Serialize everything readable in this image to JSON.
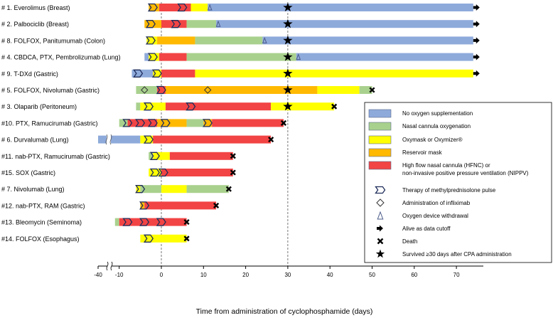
{
  "chart_data": {
    "type": "bar",
    "subtype": "swimmer",
    "title": "",
    "xlabel": "Time from administration of cyclophosphamide (days)",
    "ylabel": "",
    "xlim": [
      -40,
      75
    ],
    "axis_break": [
      -36,
      -12
    ],
    "xticks": [
      -40,
      -10,
      0,
      10,
      20,
      30,
      40,
      50,
      60,
      70
    ],
    "reference_lines": [
      0,
      30
    ],
    "legend_position": "right",
    "legend": [
      {
        "key": "none",
        "label": "No oxygen supplementation",
        "color": "#8eaadb"
      },
      {
        "key": "nasal",
        "label": "Nasal cannula oxygenation",
        "color": "#a9d18e"
      },
      {
        "key": "oxy",
        "label": "Oxymask or Oxymizer®",
        "color": "#ffff00"
      },
      {
        "key": "reservoir",
        "label": "Reservoir mask",
        "color": "#ffb900"
      },
      {
        "key": "hfnc",
        "label": "High flow nasal cannula (HFNC) or",
        "label2": "non-invasive positive pressure ventilation (NIPPV)",
        "color": "#f24444"
      },
      {
        "key": "pulse",
        "label": "Therapy of methylprednisolone pulse"
      },
      {
        "key": "inflix",
        "label": "Administration of infliximab"
      },
      {
        "key": "withdrawal",
        "label": "Oxygen device withdrawal"
      },
      {
        "key": "alive",
        "label": "Alive as data cutoff"
      },
      {
        "key": "death",
        "label": "Death"
      },
      {
        "key": "survived",
        "label": "Survived ≥30 days after CPA administration"
      }
    ],
    "patients": [
      {
        "id": "# 1.",
        "label": "Everolimus (Breast)",
        "segments": [
          {
            "s": -3,
            "e": -0.5,
            "t": "reservoir"
          },
          {
            "s": -0.5,
            "e": 7,
            "t": "hfnc"
          },
          {
            "s": 7,
            "e": 11,
            "t": "oxy"
          },
          {
            "s": 11,
            "e": 74,
            "t": "none"
          }
        ],
        "pulses": [
          -2,
          5
        ],
        "inflix": [],
        "withdrawal": [
          11.5
        ],
        "end": "alive",
        "survived": true
      },
      {
        "id": "# 2.",
        "label": "Palbociclib (Breast)",
        "segments": [
          {
            "s": -4,
            "e": 0,
            "t": "reservoir"
          },
          {
            "s": 0,
            "e": 6,
            "t": "hfnc"
          },
          {
            "s": 6,
            "e": 13,
            "t": "nasal"
          },
          {
            "s": 13,
            "e": 74,
            "t": "none"
          }
        ],
        "pulses": [
          -2.5,
          3.5
        ],
        "inflix": [],
        "withdrawal": [
          13.5
        ],
        "end": "alive",
        "survived": true
      },
      {
        "id": "# 8.",
        "label": "FOLFOX, Panitumumab (Colon)",
        "segments": [
          {
            "s": -3.5,
            "e": -1,
            "t": "oxy"
          },
          {
            "s": -1,
            "e": 8,
            "t": "reservoir"
          },
          {
            "s": 8,
            "e": 24,
            "t": "nasal"
          },
          {
            "s": 24,
            "e": 74,
            "t": "none"
          }
        ],
        "pulses": [
          -2.5
        ],
        "inflix": [],
        "withdrawal": [
          24.5
        ],
        "end": "alive",
        "survived": true
      },
      {
        "id": "# 4.",
        "label": "CBDCA, PTX, Pembrolizumab (Lung)",
        "segments": [
          {
            "s": -4,
            "e": -3,
            "t": "none"
          },
          {
            "s": -3,
            "e": -0.5,
            "t": "oxy"
          },
          {
            "s": -0.5,
            "e": 6,
            "t": "hfnc"
          },
          {
            "s": 6,
            "e": 32,
            "t": "nasal"
          },
          {
            "s": 32,
            "e": 74,
            "t": "none"
          }
        ],
        "pulses": [
          -2
        ],
        "inflix": [],
        "withdrawal": [
          32.5
        ],
        "end": "alive",
        "survived": true
      },
      {
        "id": "# 9.",
        "label": "T-DXd (Gastric)",
        "segments": [
          {
            "s": -7,
            "e": -2,
            "t": "none"
          },
          {
            "s": -2,
            "e": 0,
            "t": "oxy"
          },
          {
            "s": 0,
            "e": 8,
            "t": "hfnc"
          },
          {
            "s": 8,
            "e": 74,
            "t": "oxy"
          }
        ],
        "pulses": [
          -5.5,
          -1
        ],
        "inflix": [],
        "withdrawal": [],
        "end": "alive",
        "survived": true
      },
      {
        "id": "# 5.",
        "label": "FOLFOX, Nivolumab (Gastric)",
        "segments": [
          {
            "s": -6,
            "e": -1,
            "t": "nasal"
          },
          {
            "s": -1,
            "e": 1,
            "t": "hfnc"
          },
          {
            "s": 1,
            "e": 37,
            "t": "reservoir"
          },
          {
            "s": 37,
            "e": 47,
            "t": "oxy"
          },
          {
            "s": 47,
            "e": 50,
            "t": "nasal"
          }
        ],
        "pulses": [
          0
        ],
        "inflix": [
          -4,
          11
        ],
        "withdrawal": [],
        "end": "death",
        "survived": true
      },
      {
        "id": "# 3.",
        "label": "Olaparib (Peritoneum)",
        "segments": [
          {
            "s": -6,
            "e": -5,
            "t": "nasal"
          },
          {
            "s": -5,
            "e": 1,
            "t": "oxy"
          },
          {
            "s": 1,
            "e": 26,
            "t": "hfnc"
          },
          {
            "s": 26,
            "e": 41,
            "t": "oxy"
          }
        ],
        "pulses": [
          -3,
          7
        ],
        "inflix": [],
        "withdrawal": [],
        "end": "death",
        "survived": true
      },
      {
        "id": "#10.",
        "label": "PTX, Ramucirumab (Gastric)",
        "segments": [
          {
            "s": -10,
            "e": -8,
            "t": "nasal"
          },
          {
            "s": -8,
            "e": -1,
            "t": "hfnc"
          },
          {
            "s": -1,
            "e": 6,
            "t": "reservoir"
          },
          {
            "s": 6,
            "e": 10,
            "t": "nasal"
          },
          {
            "s": 10,
            "e": 12,
            "t": "reservoir"
          },
          {
            "s": 12,
            "e": 29,
            "t": "hfnc"
          }
        ],
        "pulses": [
          -8,
          -5,
          -2,
          1,
          11
        ],
        "inflix": [],
        "withdrawal": [],
        "end": "death",
        "survived": false
      },
      {
        "id": "# 6.",
        "label": "Durvalumab (Lung)",
        "segments": [
          {
            "s": -40,
            "e": -5,
            "t": "none"
          },
          {
            "s": -5,
            "e": -2,
            "t": "oxy"
          },
          {
            "s": -2,
            "e": 26,
            "t": "hfnc"
          }
        ],
        "pulses": [
          -3
        ],
        "inflix": [],
        "withdrawal": [],
        "end": "death",
        "survived": false
      },
      {
        "id": "#11.",
        "label": "nab-PTX, Ramucirumab (Gastric)",
        "segments": [
          {
            "s": -3,
            "e": -2,
            "t": "nasal"
          },
          {
            "s": -2,
            "e": 2,
            "t": "oxy"
          },
          {
            "s": 2,
            "e": 17,
            "t": "hfnc"
          }
        ],
        "pulses": [
          -1.5
        ],
        "inflix": [],
        "withdrawal": [],
        "end": "death",
        "survived": false
      },
      {
        "id": "#15.",
        "label": "SOX (Gastric)",
        "segments": [
          {
            "s": -3,
            "e": 0,
            "t": "oxy"
          },
          {
            "s": 0,
            "e": 17,
            "t": "hfnc"
          }
        ],
        "pulses": [
          -1.5,
          0.5
        ],
        "inflix": [],
        "withdrawal": [],
        "end": "death",
        "survived": false
      },
      {
        "id": "# 7.",
        "label": "Nivolumab (Lung)",
        "segments": [
          {
            "s": -6,
            "e": -5,
            "t": "oxy"
          },
          {
            "s": -5,
            "e": 0,
            "t": "nasal"
          },
          {
            "s": 0,
            "e": 6,
            "t": "oxy"
          },
          {
            "s": 6,
            "e": 16,
            "t": "nasal"
          }
        ],
        "pulses": [
          -5
        ],
        "inflix": [],
        "withdrawal": [],
        "end": "death",
        "survived": false
      },
      {
        "id": "#12.",
        "label": "nab-PTX, RAM (Gastric)",
        "segments": [
          {
            "s": -5,
            "e": -4,
            "t": "reservoir"
          },
          {
            "s": -4,
            "e": 13,
            "t": "hfnc"
          }
        ],
        "pulses": [
          -4
        ],
        "inflix": [],
        "withdrawal": [],
        "end": "death",
        "survived": false
      },
      {
        "id": "#13.",
        "label": "Bleomycin (Seminoma)",
        "segments": [
          {
            "s": -11,
            "e": -10,
            "t": "nasal"
          },
          {
            "s": -10,
            "e": 6,
            "t": "hfnc"
          }
        ],
        "pulses": [
          -8,
          -4,
          0
        ],
        "inflix": [],
        "withdrawal": [],
        "end": "death",
        "survived": false
      },
      {
        "id": "#14.",
        "label": "FOLFOX (Esophagus)",
        "segments": [
          {
            "s": -5,
            "e": 6,
            "t": "oxy"
          }
        ],
        "pulses": [
          -3
        ],
        "inflix": [],
        "withdrawal": [],
        "end": "death",
        "survived": false
      }
    ]
  }
}
